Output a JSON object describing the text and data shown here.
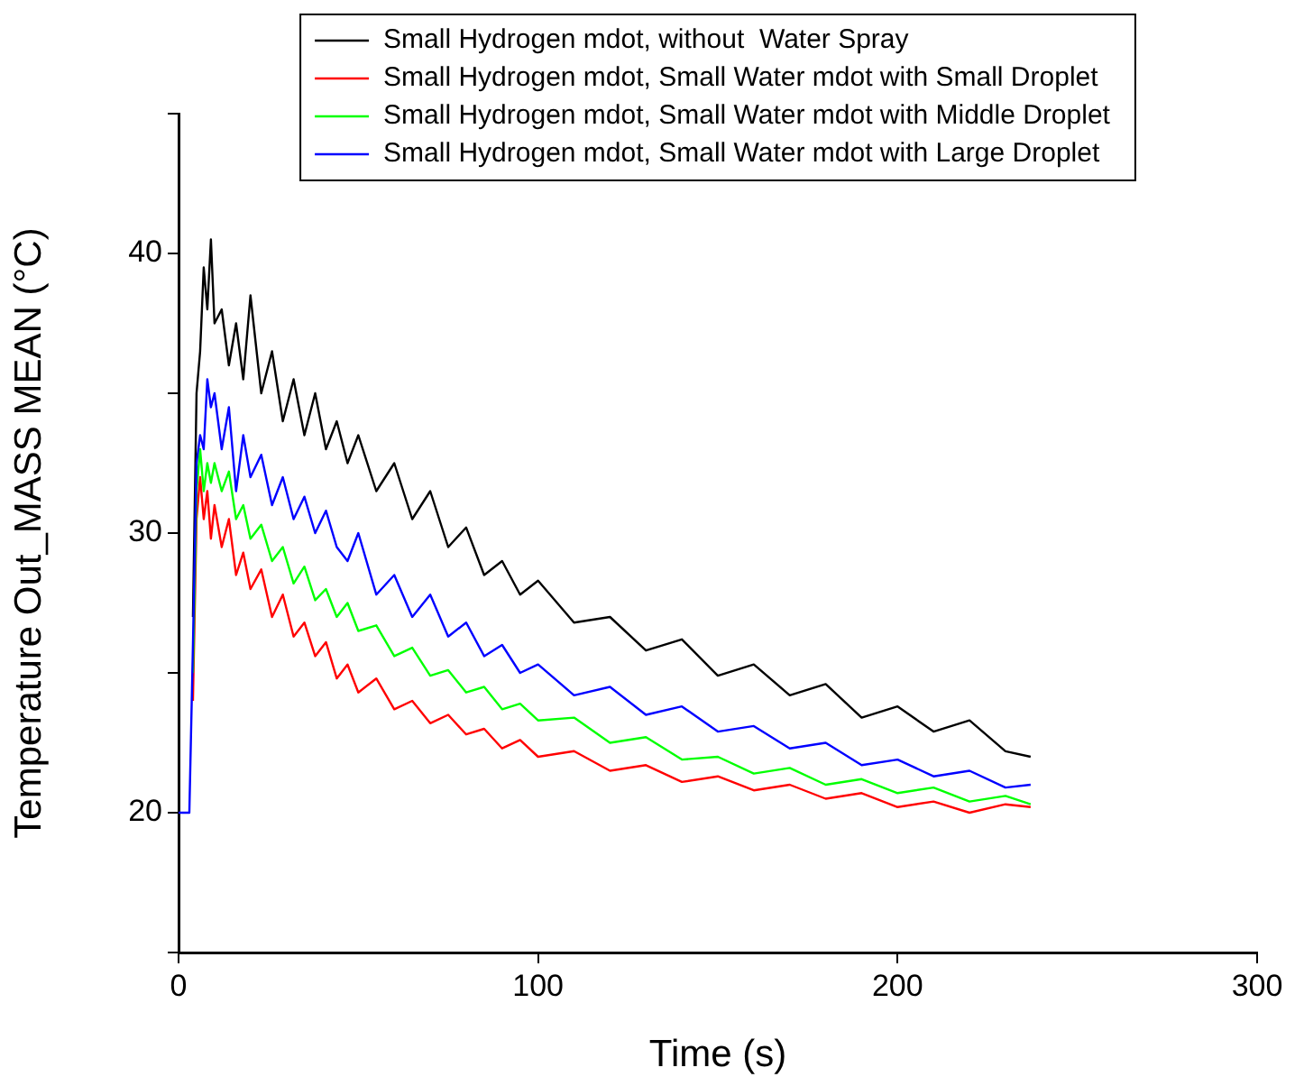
{
  "chart_data": {
    "type": "line",
    "xlabel": "Time (s)",
    "ylabel": "Temperature Out_MASS MEAN (°C)",
    "xlim": [
      0,
      300
    ],
    "xticks": [
      0,
      100,
      200,
      300
    ],
    "ylim": [
      15,
      45
    ],
    "yticks": [
      {
        "value": 15,
        "label": null
      },
      20,
      {
        "value": 25,
        "label": null
      },
      30,
      {
        "value": 35,
        "label": null
      },
      40,
      {
        "value": 45,
        "label": null
      }
    ],
    "grid": false,
    "legend": "top",
    "marker": "none",
    "line_style": "solid",
    "x": [
      0,
      3,
      4,
      5,
      6,
      7,
      8,
      9,
      10,
      12,
      14,
      16,
      18,
      20,
      23,
      26,
      29,
      32,
      35,
      38,
      41,
      44,
      47,
      50,
      55,
      60,
      65,
      70,
      75,
      80,
      85,
      90,
      95,
      100,
      110,
      120,
      130,
      140,
      150,
      160,
      170,
      180,
      190,
      200,
      210,
      220,
      230,
      237
    ],
    "series": [
      {
        "name": "Small Hydrogen mdot, without  Water Spray",
        "color": "#000000",
        "values": [
          null,
          null,
          27,
          35,
          36.5,
          39.5,
          38,
          40.5,
          37.5,
          38,
          36,
          37.5,
          35.5,
          38.5,
          35,
          36.5,
          34,
          35.5,
          33.5,
          35,
          33,
          34,
          32.5,
          33.5,
          31.5,
          32.5,
          30.5,
          31.5,
          29.5,
          30.2,
          28.5,
          29,
          27.8,
          28.3,
          26.8,
          27,
          25.8,
          26.2,
          24.9,
          25.3,
          24.2,
          24.6,
          23.4,
          23.8,
          22.9,
          23.3,
          22.2,
          22
        ]
      },
      {
        "name": "Small Hydrogen mdot, Small Water mdot with Small Droplet",
        "color": "#ff0000",
        "values": [
          null,
          null,
          24,
          30.5,
          32,
          30.5,
          31.5,
          29.8,
          31,
          29.5,
          30.5,
          28.5,
          29.3,
          28,
          28.7,
          27,
          27.8,
          26.3,
          26.8,
          25.6,
          26.1,
          24.8,
          25.3,
          24.3,
          24.8,
          23.7,
          24,
          23.2,
          23.5,
          22.8,
          23,
          22.3,
          22.6,
          22,
          22.2,
          21.5,
          21.7,
          21.1,
          21.3,
          20.8,
          21,
          20.5,
          20.7,
          20.2,
          20.4,
          20,
          20.3,
          20.2
        ]
      },
      {
        "name": "Small Hydrogen mdot, Small Water mdot with Middle Droplet",
        "color": "#00ff00",
        "values": [
          null,
          null,
          25,
          31.5,
          33,
          31.5,
          32.5,
          31.8,
          32.5,
          31.5,
          32.2,
          30.5,
          31,
          29.8,
          30.3,
          29,
          29.5,
          28.2,
          28.8,
          27.6,
          28,
          27,
          27.5,
          26.5,
          26.7,
          25.6,
          25.9,
          24.9,
          25.1,
          24.3,
          24.5,
          23.7,
          23.9,
          23.3,
          23.4,
          22.5,
          22.7,
          21.9,
          22,
          21.4,
          21.6,
          21,
          21.2,
          20.7,
          20.9,
          20.4,
          20.6,
          20.3
        ]
      },
      {
        "name": "Small Hydrogen mdot, Small Water mdot with Large Droplet",
        "color": "#0000ff",
        "values": [
          20,
          20,
          26,
          32.5,
          33.5,
          33,
          35.5,
          34.5,
          35,
          33,
          34.5,
          31.5,
          33.5,
          32,
          32.8,
          31,
          32,
          30.5,
          31.3,
          30,
          30.8,
          29.5,
          29,
          30,
          27.8,
          28.5,
          27,
          27.8,
          26.3,
          26.8,
          25.6,
          26,
          25,
          25.3,
          24.2,
          24.5,
          23.5,
          23.8,
          22.9,
          23.1,
          22.3,
          22.5,
          21.7,
          21.9,
          21.3,
          21.5,
          20.9,
          21
        ]
      }
    ]
  }
}
